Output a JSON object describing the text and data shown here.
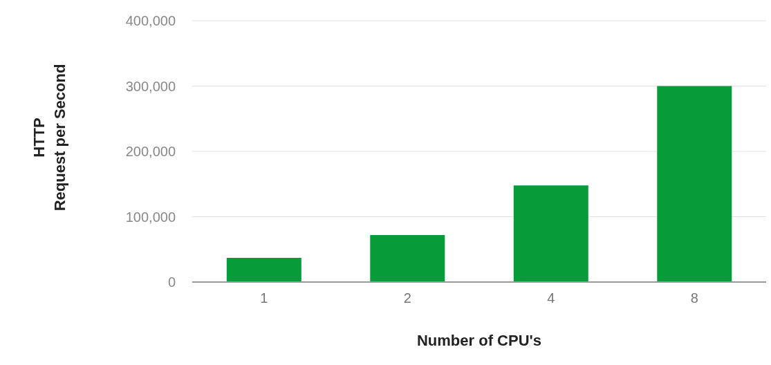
{
  "chart_data": {
    "type": "bar",
    "xlabel": "Number of CPU's",
    "ylabel": "HTTP\nRequest per Second",
    "categories": [
      "1",
      "2",
      "4",
      "8"
    ],
    "values": [
      37000,
      72000,
      148000,
      300000
    ],
    "color": "#079b39",
    "ylim": [
      0,
      400000
    ],
    "yticks": [
      {
        "value": 0,
        "label": "0"
      },
      {
        "value": 100000,
        "label": "100,000"
      },
      {
        "value": 200000,
        "label": "200,000"
      },
      {
        "value": 300000,
        "label": "300,000"
      },
      {
        "value": 400000,
        "label": "400,000"
      }
    ],
    "grid": "y"
  }
}
